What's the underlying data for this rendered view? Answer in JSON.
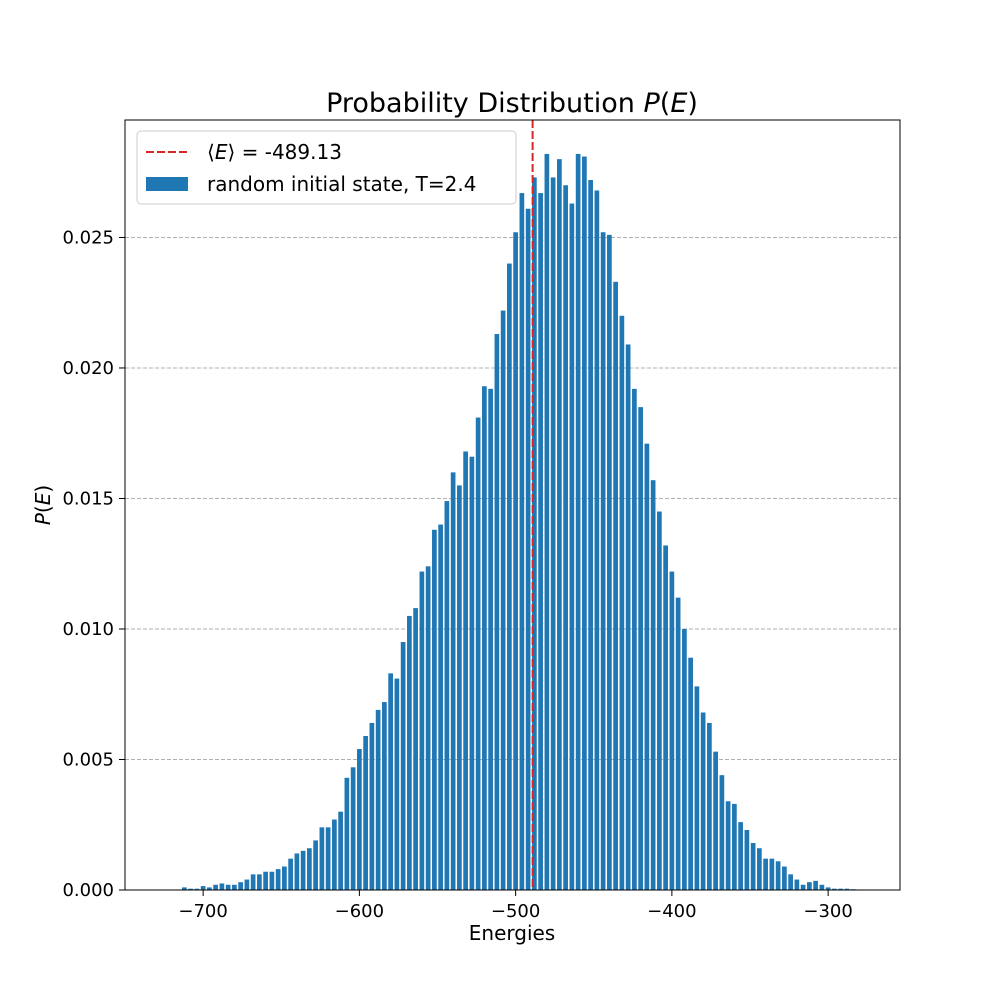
{
  "chart_data": {
    "type": "bar",
    "title": "Probability Distribution P(E)",
    "xlabel": "Energies",
    "ylabel": "P(E)",
    "xlim": [
      -750,
      -254
    ],
    "ylim": [
      0,
      0.0295
    ],
    "x_ticks": [
      -700,
      -600,
      -500,
      -400,
      -300
    ],
    "x_tick_labels": [
      "−700",
      "−600",
      "−500",
      "−400",
      "−300"
    ],
    "y_ticks": [
      0.0,
      0.005,
      0.01,
      0.015,
      0.02,
      0.025
    ],
    "y_tick_labels": [
      "0.000",
      "0.005",
      "0.010",
      "0.015",
      "0.020",
      "0.025"
    ],
    "grid": "y-dashed",
    "legend_position": "upper-left",
    "bar_width": 3,
    "bar_color": "#1f77b4",
    "mean_line": {
      "label": "⟨E⟩ = -489.13",
      "x": -489.13,
      "color": "#d62728",
      "style": "dashed"
    },
    "series": [
      {
        "name": "random initial state, T=2.4",
        "x": [
          -712,
          -708,
          -704,
          -700,
          -696,
          -692,
          -688,
          -684,
          -680,
          -676,
          -672,
          -668,
          -664,
          -660,
          -656,
          -652,
          -648,
          -644,
          -640,
          -636,
          -632,
          -628,
          -624,
          -620,
          -616,
          -612,
          -608,
          -604,
          -600,
          -596,
          -592,
          -588,
          -584,
          -580,
          -576,
          -572,
          -568,
          -564,
          -560,
          -556,
          -552,
          -548,
          -544,
          -540,
          -536,
          -532,
          -528,
          -524,
          -520,
          -516,
          -512,
          -508,
          -504,
          -500,
          -496,
          -492,
          -488,
          -484,
          -480,
          -476,
          -472,
          -468,
          -464,
          -460,
          -456,
          -452,
          -448,
          -444,
          -440,
          -436,
          -432,
          -428,
          -424,
          -420,
          -416,
          -412,
          -408,
          -404,
          -400,
          -396,
          -392,
          -388,
          -384,
          -380,
          -376,
          -372,
          -368,
          -364,
          -360,
          -356,
          -352,
          -348,
          -344,
          -340,
          -336,
          -332,
          -328,
          -324,
          -320,
          -316,
          -312,
          -308,
          -304,
          -300,
          -296,
          -292,
          -288,
          -284,
          -280
        ],
        "values": [
          0.0001,
          5e-05,
          5e-05,
          0.00015,
          0.0001,
          0.0002,
          0.00025,
          0.0002,
          0.0002,
          0.0003,
          0.0004,
          0.0006,
          0.0006,
          0.0007,
          0.0007,
          0.0008,
          0.0009,
          0.0012,
          0.0014,
          0.0015,
          0.0016,
          0.0019,
          0.0024,
          0.0024,
          0.0027,
          0.003,
          0.0043,
          0.0047,
          0.0054,
          0.0059,
          0.0064,
          0.0069,
          0.0072,
          0.0083,
          0.0081,
          0.0095,
          0.0105,
          0.0108,
          0.0122,
          0.0124,
          0.0138,
          0.014,
          0.0149,
          0.016,
          0.0155,
          0.0168,
          0.0166,
          0.0181,
          0.0193,
          0.0192,
          0.0213,
          0.0222,
          0.024,
          0.0252,
          0.0267,
          0.0261,
          0.0273,
          0.0267,
          0.0282,
          0.0273,
          0.028,
          0.027,
          0.0263,
          0.0282,
          0.0281,
          0.0272,
          0.0268,
          0.0252,
          0.0251,
          0.0233,
          0.022,
          0.0209,
          0.0192,
          0.0185,
          0.0171,
          0.0157,
          0.0145,
          0.0132,
          0.0122,
          0.0112,
          0.01,
          0.0089,
          0.0078,
          0.0068,
          0.0064,
          0.0053,
          0.0044,
          0.0034,
          0.0033,
          0.0026,
          0.0023,
          0.0018,
          0.0016,
          0.0012,
          0.0012,
          0.0011,
          0.0009,
          0.0006,
          0.0004,
          0.0002,
          0.0003,
          0.00035,
          0.0002,
          0.0001,
          5e-05,
          5e-05,
          5e-05,
          3e-05,
          2e-05
        ]
      }
    ]
  }
}
